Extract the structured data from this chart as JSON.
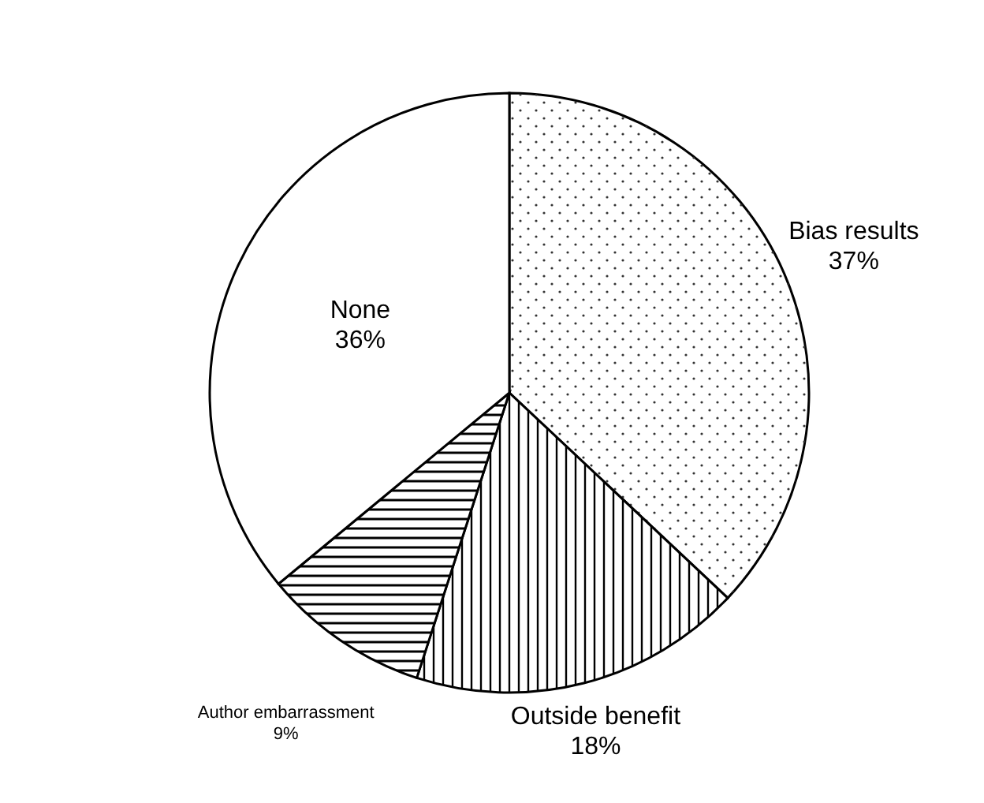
{
  "chart_data": {
    "type": "pie",
    "categories": [
      "Bias results",
      "Outside benefit",
      "Author embarrassment",
      "None"
    ],
    "values": [
      37,
      18,
      9,
      36
    ],
    "colors": [
      "#ffffff",
      "#ffffff",
      "#ffffff",
      "#ffffff"
    ],
    "value_labels": [
      "37%",
      "18%",
      "9%",
      "36%"
    ]
  }
}
